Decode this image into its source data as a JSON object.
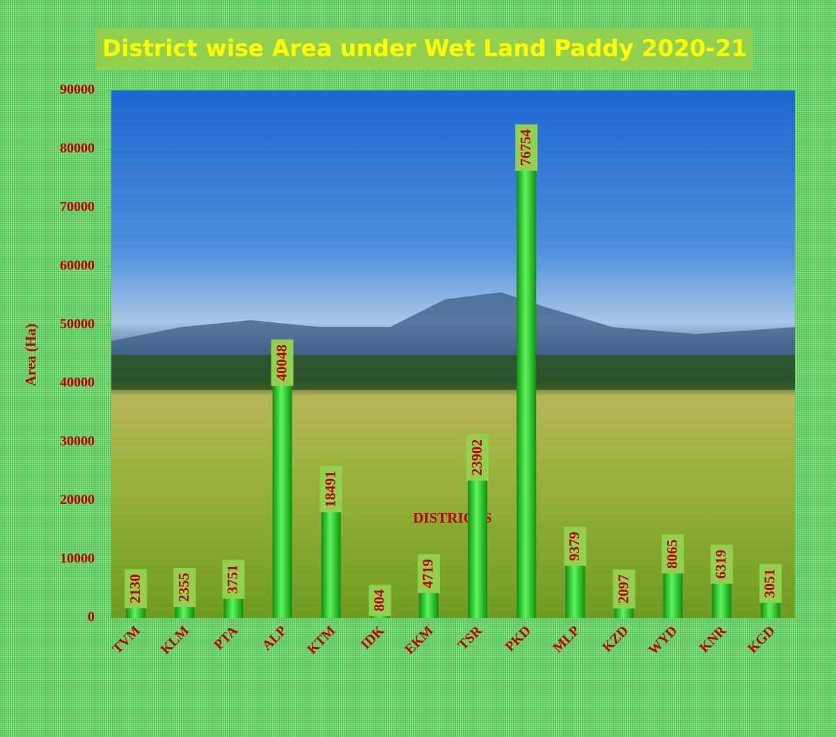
{
  "chart_data": {
    "type": "bar",
    "title": "District wise Area under Wet Land Paddy 2020-21",
    "x_label": "DISTRICTS",
    "y_label": "Area (Ha)",
    "categories": [
      "TVM",
      "KLM",
      "PTA",
      "ALP",
      "KTM",
      "IDK",
      "EKM",
      "TSR",
      "PKD",
      "MLP",
      "KZD",
      "WYD",
      "KNR",
      "KGD"
    ],
    "values": [
      2130,
      2355,
      3751,
      40048,
      18491,
      804,
      4719,
      23902,
      76754,
      9379,
      2097,
      8065,
      6319,
      3051
    ],
    "color": "#22cc22",
    "ylim": [
      0,
      90000
    ],
    "yticks": [
      0,
      10000,
      20000,
      30000,
      40000,
      50000,
      60000,
      70000,
      80000,
      90000
    ]
  }
}
